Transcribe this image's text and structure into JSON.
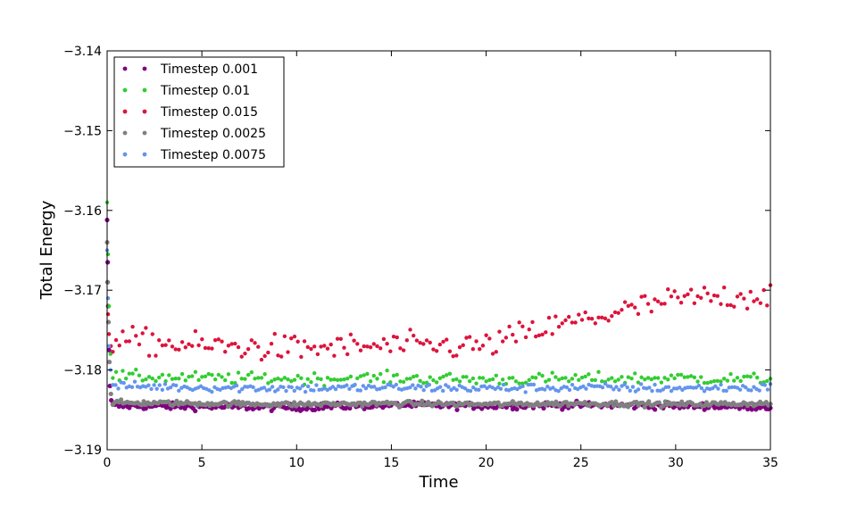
{
  "chart_data": {
    "type": "scatter",
    "title": "",
    "xlabel": "Time",
    "ylabel": "Total Energy",
    "xlim": [
      0,
      35
    ],
    "ylim": [
      -3.19,
      -3.14
    ],
    "xticks": [
      0,
      5,
      10,
      15,
      20,
      25,
      30,
      35
    ],
    "xtick_labels": [
      "0",
      "5",
      "10",
      "15",
      "20",
      "25",
      "30",
      "35"
    ],
    "yticks": [
      -3.14,
      -3.15,
      -3.16,
      -3.17,
      -3.18,
      -3.19
    ],
    "ytick_labels": [
      "−3.14",
      "−3.15",
      "−3.16",
      "−3.17",
      "−3.18",
      "−3.19"
    ],
    "grid": false,
    "legend_position": "top-left",
    "series": [
      {
        "name": "Timestep 0.001",
        "color": "#800080",
        "transient": [
          [
            0.0,
            -3.1612
          ],
          [
            0.03,
            -3.1665
          ],
          [
            0.06,
            -3.172
          ],
          [
            0.1,
            -3.1775
          ],
          [
            0.15,
            -3.182
          ],
          [
            0.22,
            -3.1838
          ]
        ],
        "segments": [
          [
            0.3,
            -3.1845
          ],
          [
            5,
            -3.1846
          ],
          [
            10,
            -3.1847
          ],
          [
            15,
            -3.1844
          ],
          [
            20,
            -3.1845
          ],
          [
            25,
            -3.1844
          ],
          [
            30,
            -3.1845
          ],
          [
            35,
            -3.1846
          ]
        ],
        "spread": 0.0004,
        "count": 320
      },
      {
        "name": "Timestep 0.01",
        "color": "#32CD32",
        "transient": [
          [
            0.0,
            -3.159
          ],
          [
            0.05,
            -3.1655
          ],
          [
            0.1,
            -3.172
          ],
          [
            0.18,
            -3.178
          ]
        ],
        "segments": [
          [
            0.3,
            -3.1808
          ],
          [
            5,
            -3.181
          ],
          [
            10,
            -3.1811
          ],
          [
            15,
            -3.181
          ],
          [
            20,
            -3.1812
          ],
          [
            25,
            -3.1811
          ],
          [
            30,
            -3.181
          ],
          [
            35,
            -3.1812
          ]
        ],
        "spread": 0.0007,
        "count": 200
      },
      {
        "name": "Timestep 0.015",
        "color": "#DC143C",
        "transient": [
          [
            0.0,
            -3.169
          ],
          [
            0.05,
            -3.173
          ],
          [
            0.1,
            -3.1755
          ],
          [
            0.2,
            -3.177
          ]
        ],
        "segments": [
          [
            0.3,
            -3.1762
          ],
          [
            5,
            -3.177
          ],
          [
            10,
            -3.1773
          ],
          [
            15,
            -3.177
          ],
          [
            20,
            -3.177
          ],
          [
            22,
            -3.1755
          ],
          [
            25,
            -3.1738
          ],
          [
            30,
            -3.1712
          ],
          [
            35,
            -3.1705
          ]
        ],
        "spread": 0.0016,
        "count": 200
      },
      {
        "name": "Timestep 0.0025",
        "color": "#808080",
        "transient": [
          [
            0.0,
            -3.164
          ],
          [
            0.03,
            -3.169
          ],
          [
            0.07,
            -3.174
          ],
          [
            0.12,
            -3.179
          ],
          [
            0.2,
            -3.183
          ]
        ],
        "segments": [
          [
            0.3,
            -3.1841
          ],
          [
            5,
            -3.1842
          ],
          [
            10,
            -3.1843
          ],
          [
            15,
            -3.1842
          ],
          [
            20,
            -3.1843
          ],
          [
            25,
            -3.1842
          ],
          [
            30,
            -3.1843
          ],
          [
            35,
            -3.1842
          ]
        ],
        "spread": 0.0003,
        "count": 320
      },
      {
        "name": "Timestep 0.0075",
        "color": "#6495ED",
        "transient": [
          [
            0.0,
            -3.165
          ],
          [
            0.05,
            -3.171
          ],
          [
            0.1,
            -3.177
          ],
          [
            0.18,
            -3.18
          ]
        ],
        "segments": [
          [
            0.3,
            -3.182
          ],
          [
            5,
            -3.1822
          ],
          [
            10,
            -3.1823
          ],
          [
            15,
            -3.1822
          ],
          [
            20,
            -3.1823
          ],
          [
            25,
            -3.1822
          ],
          [
            30,
            -3.1823
          ],
          [
            35,
            -3.1822
          ]
        ],
        "spread": 0.0005,
        "count": 240
      }
    ]
  }
}
